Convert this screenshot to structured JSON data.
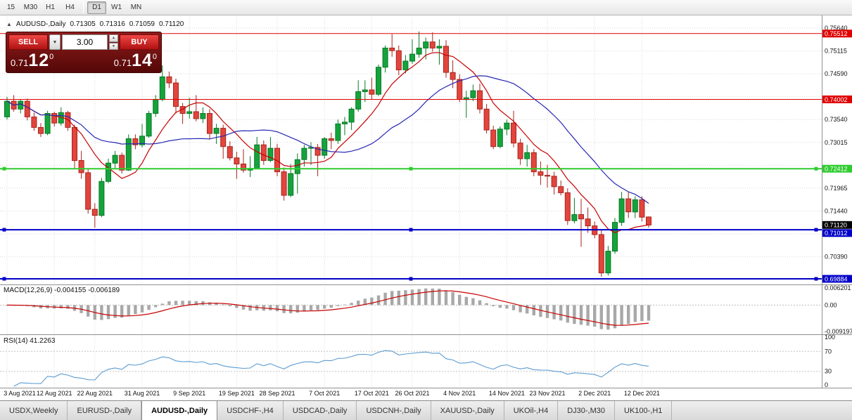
{
  "toolbar": {
    "timeframes": [
      {
        "label": "15",
        "active": false
      },
      {
        "label": "M30",
        "active": false
      },
      {
        "label": "H1",
        "active": false
      },
      {
        "label": "H4",
        "active": false
      },
      {
        "label": "D1",
        "active": true
      },
      {
        "label": "W1",
        "active": false
      },
      {
        "label": "MN",
        "active": false
      }
    ]
  },
  "chart_header": {
    "price_up_icon": "▲",
    "symbol": "AUDUSD-,Daily",
    "open": "0.71305",
    "high": "0.71316",
    "low": "0.71059",
    "close": "0.71120"
  },
  "trade_panel": {
    "sell_label": "SELL",
    "buy_label": "BUY",
    "volume_value": "3.00",
    "dropdown_icon": "▼",
    "step_up_icon": "▲",
    "step_down_icon": "▼",
    "sell_price": {
      "base": "0.71",
      "big": "12",
      "sup": "0"
    },
    "buy_price": {
      "base": "0.71",
      "big": "14",
      "sup": "0"
    }
  },
  "chart_data": {
    "type": "candlestick",
    "symbol": "AUDUSD",
    "timeframe": "Daily",
    "ylim": [
      0.69788,
      0.75896
    ],
    "y_ticks": [
      0.7564,
      0.75115,
      0.7459,
      0.74065,
      0.7354,
      0.73015,
      0.7249,
      0.71965,
      0.7144,
      0.70915,
      0.7039
    ],
    "x_labels": [
      "3 Aug 2021",
      "12 Aug 2021",
      "22 Aug 2021",
      "31 Aug 2021",
      "9 Sep 2021",
      "19 Sep 2021",
      "28 Sep 2021",
      "7 Oct 2021",
      "17 Oct 2021",
      "26 Oct 2021",
      "4 Nov 2021",
      "14 Nov 2021",
      "23 Nov 2021",
      "2 Dec 2021",
      "12 Dec 2021"
    ],
    "x_label_indices": [
      0,
      7,
      13,
      20,
      27,
      34,
      40,
      47,
      54,
      60,
      67,
      74,
      80,
      87,
      94
    ],
    "candles": [
      [
        0.736,
        0.7406,
        0.7354,
        0.7396
      ],
      [
        0.7396,
        0.741,
        0.7372,
        0.7378
      ],
      [
        0.7378,
        0.74,
        0.7368,
        0.7396
      ],
      [
        0.7396,
        0.7402,
        0.7352,
        0.736
      ],
      [
        0.736,
        0.737,
        0.7328,
        0.7336
      ],
      [
        0.7336,
        0.7346,
        0.7314,
        0.7322
      ],
      [
        0.7322,
        0.7374,
        0.7318,
        0.7368
      ],
      [
        0.7368,
        0.7372,
        0.7338,
        0.7346
      ],
      [
        0.7346,
        0.7382,
        0.734,
        0.737
      ],
      [
        0.737,
        0.7374,
        0.7328,
        0.7336
      ],
      [
        0.7336,
        0.7342,
        0.7242,
        0.726
      ],
      [
        0.726,
        0.7282,
        0.7218,
        0.7232
      ],
      [
        0.7232,
        0.7242,
        0.7138,
        0.7148
      ],
      [
        0.7148,
        0.7162,
        0.7106,
        0.7134
      ],
      [
        0.7134,
        0.722,
        0.713,
        0.7212
      ],
      [
        0.7212,
        0.7264,
        0.7208,
        0.7254
      ],
      [
        0.7254,
        0.7282,
        0.7242,
        0.7272
      ],
      [
        0.7272,
        0.7278,
        0.723,
        0.7238
      ],
      [
        0.7238,
        0.732,
        0.7236,
        0.731
      ],
      [
        0.731,
        0.732,
        0.7286,
        0.7296
      ],
      [
        0.7296,
        0.7344,
        0.729,
        0.7316
      ],
      [
        0.7316,
        0.7374,
        0.7312,
        0.7368
      ],
      [
        0.7368,
        0.741,
        0.736,
        0.74
      ],
      [
        0.74,
        0.7478,
        0.7396,
        0.7452
      ],
      [
        0.7452,
        0.7464,
        0.7426,
        0.7438
      ],
      [
        0.7438,
        0.7448,
        0.7368,
        0.7384
      ],
      [
        0.7384,
        0.7392,
        0.7344,
        0.7368
      ],
      [
        0.7368,
        0.7404,
        0.7356,
        0.7372
      ],
      [
        0.7372,
        0.741,
        0.735,
        0.7356
      ],
      [
        0.7356,
        0.7382,
        0.7346,
        0.7368
      ],
      [
        0.7368,
        0.7378,
        0.7308,
        0.7322
      ],
      [
        0.7322,
        0.7344,
        0.7298,
        0.7334
      ],
      [
        0.7334,
        0.7342,
        0.7264,
        0.7292
      ],
      [
        0.7292,
        0.7304,
        0.726,
        0.7266
      ],
      [
        0.7266,
        0.728,
        0.7218,
        0.7252
      ],
      [
        0.7252,
        0.7286,
        0.7232,
        0.7238
      ],
      [
        0.7238,
        0.727,
        0.7222,
        0.7242
      ],
      [
        0.7242,
        0.7314,
        0.724,
        0.7296
      ],
      [
        0.7296,
        0.7306,
        0.725,
        0.726
      ],
      [
        0.726,
        0.7314,
        0.7256,
        0.7288
      ],
      [
        0.7288,
        0.7298,
        0.7224,
        0.7234
      ],
      [
        0.7234,
        0.7244,
        0.7168,
        0.718
      ],
      [
        0.718,
        0.7252,
        0.7176,
        0.723
      ],
      [
        0.723,
        0.7276,
        0.7184,
        0.7262
      ],
      [
        0.7262,
        0.7296,
        0.7246,
        0.7288
      ],
      [
        0.7288,
        0.7302,
        0.725,
        0.729
      ],
      [
        0.729,
        0.7298,
        0.7224,
        0.7272
      ],
      [
        0.7272,
        0.7314,
        0.7264,
        0.731
      ],
      [
        0.731,
        0.7324,
        0.7286,
        0.7306
      ],
      [
        0.7306,
        0.7354,
        0.7298,
        0.7344
      ],
      [
        0.7344,
        0.736,
        0.7318,
        0.7348
      ],
      [
        0.7348,
        0.7382,
        0.733,
        0.7378
      ],
      [
        0.7378,
        0.7444,
        0.7372,
        0.7418
      ],
      [
        0.7418,
        0.7444,
        0.7394,
        0.7422
      ],
      [
        0.7422,
        0.745,
        0.74,
        0.7412
      ],
      [
        0.7412,
        0.748,
        0.7408,
        0.7474
      ],
      [
        0.7474,
        0.7524,
        0.7462,
        0.7518
      ],
      [
        0.7518,
        0.755,
        0.7498,
        0.7512
      ],
      [
        0.7512,
        0.7524,
        0.7456,
        0.7468
      ],
      [
        0.7468,
        0.7502,
        0.746,
        0.7488
      ],
      [
        0.7488,
        0.7538,
        0.7482,
        0.7504
      ],
      [
        0.7504,
        0.7556,
        0.7496,
        0.7518
      ],
      [
        0.7518,
        0.7542,
        0.7492,
        0.7532
      ],
      [
        0.7532,
        0.7554,
        0.751,
        0.7518
      ],
      [
        0.7518,
        0.7538,
        0.748,
        0.7522
      ],
      [
        0.7522,
        0.7536,
        0.745,
        0.7462
      ],
      [
        0.7462,
        0.749,
        0.7426,
        0.7446
      ],
      [
        0.7446,
        0.7458,
        0.7394,
        0.74
      ],
      [
        0.74,
        0.742,
        0.7358,
        0.7404
      ],
      [
        0.7404,
        0.7434,
        0.7396,
        0.742
      ],
      [
        0.742,
        0.7436,
        0.7368,
        0.7378
      ],
      [
        0.7378,
        0.739,
        0.7322,
        0.733
      ],
      [
        0.733,
        0.734,
        0.7286,
        0.7292
      ],
      [
        0.7292,
        0.7338,
        0.7288,
        0.7332
      ],
      [
        0.7332,
        0.7354,
        0.7318,
        0.7346
      ],
      [
        0.7346,
        0.7374,
        0.729,
        0.73
      ],
      [
        0.73,
        0.731,
        0.725,
        0.7264
      ],
      [
        0.7264,
        0.7296,
        0.7246,
        0.7278
      ],
      [
        0.7278,
        0.7286,
        0.7224,
        0.7234
      ],
      [
        0.7234,
        0.7258,
        0.7204,
        0.7226
      ],
      [
        0.7226,
        0.725,
        0.7198,
        0.7224
      ],
      [
        0.7224,
        0.7234,
        0.7182,
        0.72
      ],
      [
        0.72,
        0.7214,
        0.718,
        0.7186
      ],
      [
        0.7186,
        0.7196,
        0.7112,
        0.7122
      ],
      [
        0.7122,
        0.7174,
        0.7116,
        0.7136
      ],
      [
        0.7136,
        0.7172,
        0.7062,
        0.7126
      ],
      [
        0.7126,
        0.7152,
        0.7094,
        0.711
      ],
      [
        0.711,
        0.712,
        0.7082,
        0.709
      ],
      [
        0.709,
        0.71,
        0.6993,
        0.7002
      ],
      [
        0.7002,
        0.7064,
        0.6996,
        0.7052
      ],
      [
        0.7052,
        0.7128,
        0.7046,
        0.7118
      ],
      [
        0.7118,
        0.7188,
        0.711,
        0.7172
      ],
      [
        0.7172,
        0.7188,
        0.7128,
        0.7142
      ],
      [
        0.7142,
        0.7178,
        0.7128,
        0.717
      ],
      [
        0.717,
        0.7178,
        0.712,
        0.713
      ],
      [
        0.71305,
        0.71316,
        0.71059,
        0.7112
      ]
    ],
    "ma_fast": {
      "period": 8
    },
    "ma_slow": {
      "period": 21
    },
    "colors": {
      "up_fill": "#15a33c",
      "up_stroke": "#077a25",
      "down_fill": "#e2453c",
      "down_stroke": "#a7241d",
      "ma_fast": "#c80000",
      "ma_slow": "#2828b4",
      "grid": "#d9d9d9",
      "macd_hist": "#a8a8a8",
      "macd_signal": "#c80000",
      "rsi_line": "#5b9bd0"
    },
    "hlines": [
      {
        "price": 0.75512,
        "label": "0.75512",
        "color": "#e00000",
        "width": 1,
        "handles": false
      },
      {
        "price": 0.74002,
        "label": "0.74002",
        "color": "#e00000",
        "width": 1,
        "handles": false
      },
      {
        "price": 0.72412,
        "label": "0.72412",
        "color": "#2fcc2f",
        "width": 2,
        "handles": true
      },
      {
        "price": 0.71012,
        "label": "0.71012",
        "color": "#0000c8",
        "width": 2,
        "handles": true
      },
      {
        "price": 0.69884,
        "label": "0.69884",
        "color": "#0000c8",
        "width": 2,
        "handles": true
      }
    ],
    "current_price": {
      "value": 0.7112,
      "label": "0.71120",
      "color": "#000000"
    },
    "macd": {
      "label": "MACD(12,26,9) -0.004155 -0.006189",
      "fast": 12,
      "slow": 26,
      "signal": 9,
      "value": -0.004155,
      "signal_value": -0.006189,
      "axis_labels": [
        "0.006201",
        "0.00",
        "-0.009197"
      ],
      "range": [
        -0.009197,
        0.006201
      ]
    },
    "rsi": {
      "label": "RSI(14) 41.2263",
      "period": 14,
      "value": 41.2263,
      "axis_labels": [
        "100",
        "70",
        "30",
        "0"
      ],
      "levels": [
        70,
        30
      ]
    }
  },
  "tabs": {
    "items": [
      {
        "label": "USDX,Weekly",
        "active": false
      },
      {
        "label": "EURUSD-,Daily",
        "active": false
      },
      {
        "label": "AUDUSD-,Daily",
        "active": true
      },
      {
        "label": "USDCHF-,H4",
        "active": false
      },
      {
        "label": "USDCAD-,Daily",
        "active": false
      },
      {
        "label": "USDCNH-,Daily",
        "active": false
      },
      {
        "label": "XAUUSD-,Daily",
        "active": false
      },
      {
        "label": "UKOil-,H4",
        "active": false
      },
      {
        "label": "DJ30-,M30",
        "active": false
      },
      {
        "label": "UK100-,H1",
        "active": false
      }
    ]
  }
}
